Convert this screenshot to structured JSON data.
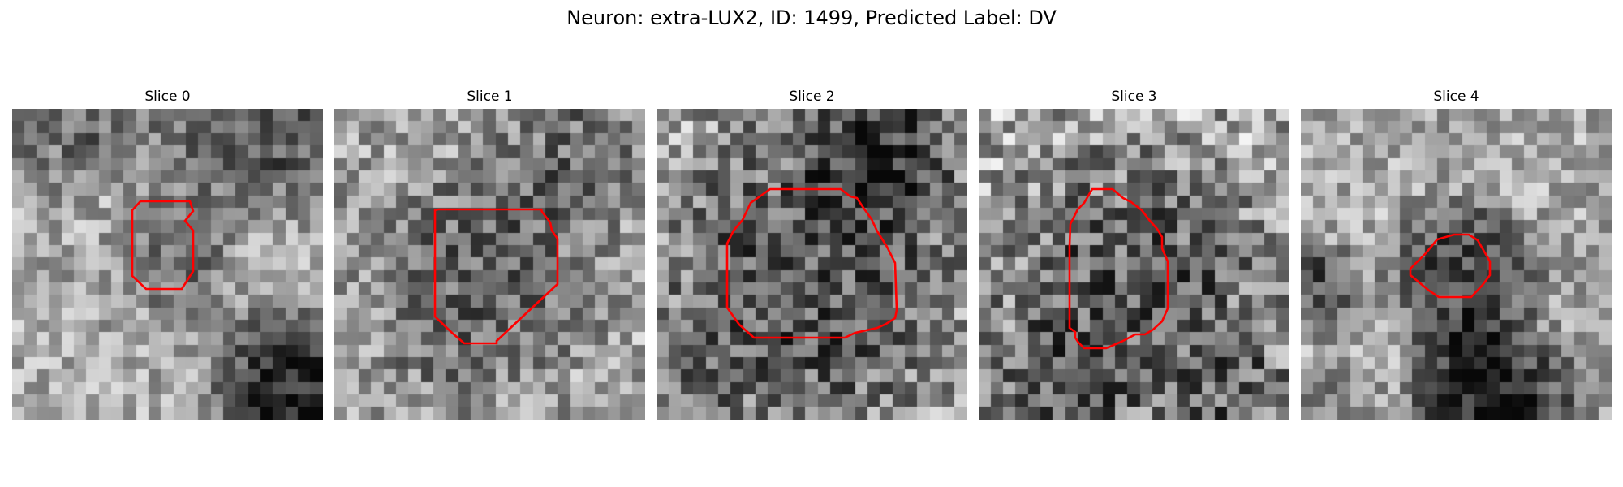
{
  "figure": {
    "title": "Neuron: extra-LUX2, ID: 1499, Predicted Label: DV"
  },
  "colors": {
    "outline": "#ff0000",
    "background": "#ffffff",
    "colormap": "gray"
  },
  "panels": [
    {
      "title": "Slice 0"
    },
    {
      "title": "Slice 1"
    },
    {
      "title": "Slice 2"
    },
    {
      "title": "Slice 3"
    },
    {
      "title": "Slice 4"
    }
  ]
}
